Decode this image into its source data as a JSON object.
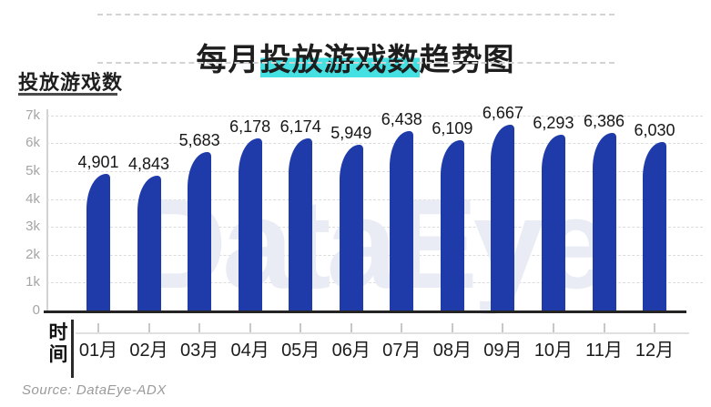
{
  "title": {
    "pre": "每月",
    "highlight": "投放游戏数",
    "post": "趋势图"
  },
  "y_axis_title": "投放游戏数",
  "x_axis_title": "时间",
  "watermark": "DataEye",
  "source": "Source: DataEye-ADX",
  "colors": {
    "bar": "#1e3ba9",
    "title_highlight": "#45e0e1",
    "watermark": "#eaecf5",
    "baseline": "#242424",
    "gridline": "#dcdcdc"
  },
  "chart_data": {
    "type": "bar",
    "title": "每月投放游戏数趋势图",
    "xlabel": "时间",
    "ylabel": "投放游戏数",
    "categories": [
      "01月",
      "02月",
      "03月",
      "04月",
      "05月",
      "06月",
      "07月",
      "08月",
      "09月",
      "10月",
      "11月",
      "12月"
    ],
    "values": [
      4901,
      4843,
      5683,
      6178,
      6174,
      5949,
      6438,
      6109,
      6667,
      6293,
      6386,
      6030
    ],
    "value_labels": [
      "4,901",
      "4,843",
      "5,683",
      "6,178",
      "6,174",
      "5,949",
      "6,438",
      "6,109",
      "6,667",
      "6,293",
      "6,386",
      "6,030"
    ],
    "y_ticks": [
      "7k",
      "6k",
      "5k",
      "4k",
      "3k",
      "2k",
      "1k",
      "0"
    ],
    "ylim": [
      0,
      7000
    ],
    "grid": "horizontal-dashed",
    "legend": "none"
  }
}
